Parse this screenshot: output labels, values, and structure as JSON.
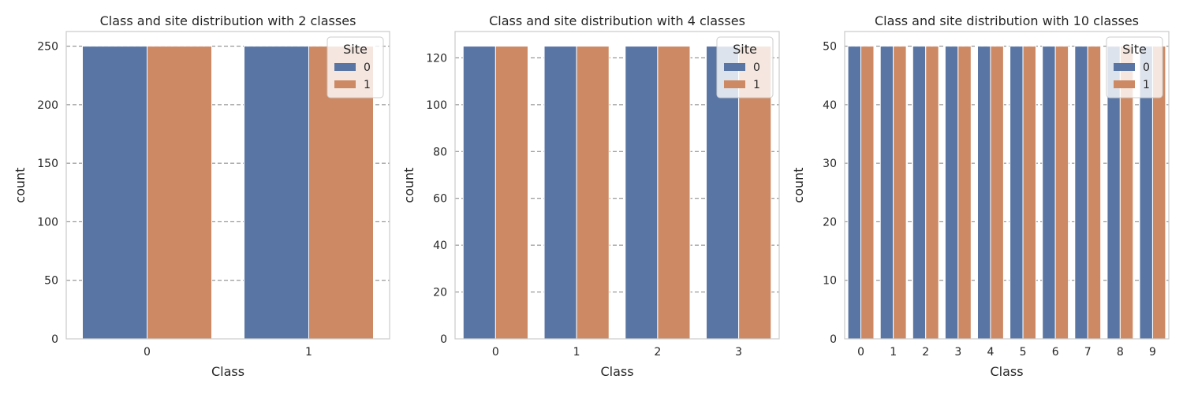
{
  "colors": {
    "site_0": "#5875a4",
    "site_1": "#cc8963",
    "grid": "#808080",
    "frame": "#cccccc",
    "text": "#262626"
  },
  "chart_data": [
    {
      "type": "bar",
      "title": "Class and site distribution with 2 classes",
      "xlabel": "Class",
      "ylabel": "count",
      "categories": [
        "0",
        "1"
      ],
      "series": [
        {
          "name": "0",
          "values": [
            250,
            250
          ]
        },
        {
          "name": "1",
          "values": [
            250,
            250
          ]
        }
      ],
      "ylim": [
        0,
        262.5
      ],
      "yticks": [
        0,
        50,
        100,
        150,
        200,
        250
      ],
      "grid": "horizontal dashed",
      "legend": {
        "title": "Site",
        "placement": "top-right"
      }
    },
    {
      "type": "bar",
      "title": "Class and site distribution with 4 classes",
      "xlabel": "Class",
      "ylabel": "count",
      "categories": [
        "0",
        "1",
        "2",
        "3"
      ],
      "series": [
        {
          "name": "0",
          "values": [
            125,
            125,
            125,
            125
          ]
        },
        {
          "name": "1",
          "values": [
            125,
            125,
            125,
            125
          ]
        }
      ],
      "ylim": [
        0,
        131.25
      ],
      "yticks": [
        0,
        20,
        40,
        60,
        80,
        100,
        120
      ],
      "grid": "horizontal dashed",
      "legend": {
        "title": "Site",
        "placement": "top-right"
      }
    },
    {
      "type": "bar",
      "title": "Class and site distribution with 10 classes",
      "xlabel": "Class",
      "ylabel": "count",
      "categories": [
        "0",
        "1",
        "2",
        "3",
        "4",
        "5",
        "6",
        "7",
        "8",
        "9"
      ],
      "series": [
        {
          "name": "0",
          "values": [
            50,
            50,
            50,
            50,
            50,
            50,
            50,
            50,
            50,
            50
          ]
        },
        {
          "name": "1",
          "values": [
            50,
            50,
            50,
            50,
            50,
            50,
            50,
            50,
            50,
            50
          ]
        }
      ],
      "ylim": [
        0,
        52.5
      ],
      "yticks": [
        0,
        10,
        20,
        30,
        40,
        50
      ],
      "grid": "horizontal dashed",
      "legend": {
        "title": "Site",
        "placement": "top-right"
      }
    }
  ]
}
